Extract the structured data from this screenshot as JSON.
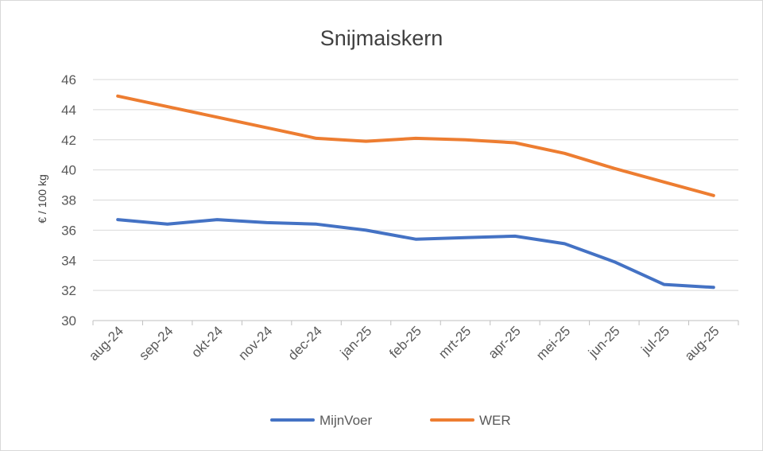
{
  "chart_data": {
    "type": "line",
    "title": "Snijmaiskern",
    "ylabel": "€ / 100 kg",
    "xlabel": "",
    "categories": [
      "aug-24",
      "sep-24",
      "okt-24",
      "nov-24",
      "dec-24",
      "jan-25",
      "feb-25",
      "mrt-25",
      "apr-25",
      "mei-25",
      "jun-25",
      "jul-25",
      "aug-25"
    ],
    "ylim": [
      30,
      46
    ],
    "yticks": [
      "30",
      "32",
      "34",
      "36",
      "38",
      "40",
      "42",
      "44",
      "46"
    ],
    "grid": true,
    "legend": "bottom",
    "series": [
      {
        "name": "MijnVoer",
        "color": "#4472C4",
        "values": [
          36.7,
          36.4,
          36.7,
          36.5,
          36.4,
          36.0,
          35.4,
          35.5,
          35.6,
          35.1,
          33.9,
          32.4,
          32.2
        ]
      },
      {
        "name": "WER",
        "color": "#ED7D31",
        "values": [
          44.9,
          44.2,
          43.5,
          42.8,
          42.1,
          41.9,
          42.1,
          42.0,
          41.8,
          41.1,
          40.1,
          39.2,
          38.3
        ]
      }
    ]
  }
}
